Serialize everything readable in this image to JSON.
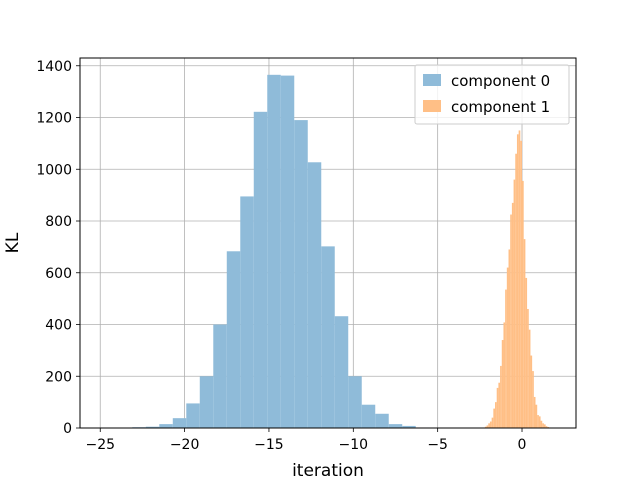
{
  "chart_data": {
    "type": "histogram",
    "xlabel": "iteration",
    "ylabel": "KL",
    "xlim": [
      -26.2,
      3.2
    ],
    "ylim": [
      0,
      1430
    ],
    "xticks": [
      -25,
      -20,
      -15,
      -10,
      -5,
      0
    ],
    "xtick_labels": [
      "−25",
      "−20",
      "−15",
      "−10",
      "−5",
      "0"
    ],
    "yticks": [
      0,
      200,
      400,
      600,
      800,
      1000,
      1200,
      1400
    ],
    "ytick_labels": [
      "0",
      "200",
      "400",
      "600",
      "800",
      "1000",
      "1200",
      "1400"
    ],
    "grid": true,
    "legend_position": "upper right",
    "series": [
      {
        "name": "component 0",
        "color": "#8fbbd9",
        "bin_edges": [
          -23.1,
          -22.3,
          -21.5,
          -20.7,
          -19.9,
          -19.1,
          -18.3,
          -17.5,
          -16.7,
          -15.9,
          -15.1,
          -14.3,
          -13.5,
          -12.7,
          -11.9,
          -11.1,
          -10.3,
          -9.5,
          -8.7,
          -7.9,
          -7.1,
          -6.3,
          -5.5
        ],
        "counts": [
          3,
          5,
          15,
          38,
          95,
          200,
          400,
          683,
          895,
          1222,
          1365,
          1362,
          1190,
          1027,
          702,
          432,
          200,
          90,
          55,
          15,
          8,
          2
        ]
      },
      {
        "name": "component 1",
        "color": "#ffbf86",
        "bin_edges": [
          -2.4,
          -2.3,
          -2.2,
          -2.1,
          -2.0,
          -1.9,
          -1.8,
          -1.7,
          -1.6,
          -1.5,
          -1.4,
          -1.3,
          -1.2,
          -1.1,
          -1.0,
          -0.9,
          -0.8,
          -0.7,
          -0.6,
          -0.5,
          -0.4,
          -0.3,
          -0.2,
          -0.1,
          0.0,
          0.1,
          0.2,
          0.3,
          0.4,
          0.5,
          0.6,
          0.7,
          0.8,
          0.9,
          1.0,
          1.1,
          1.2,
          1.3,
          1.4,
          1.5,
          1.6,
          1.7,
          1.8
        ],
        "counts": [
          1,
          2,
          5,
          10,
          18,
          25,
          40,
          75,
          100,
          155,
          175,
          240,
          340,
          408,
          535,
          620,
          690,
          825,
          870,
          960,
          1060,
          1135,
          1150,
          1110,
          955,
          730,
          580,
          460,
          380,
          280,
          220,
          120,
          90,
          50,
          45,
          28,
          18,
          14,
          7,
          4,
          2,
          1
        ]
      }
    ]
  }
}
